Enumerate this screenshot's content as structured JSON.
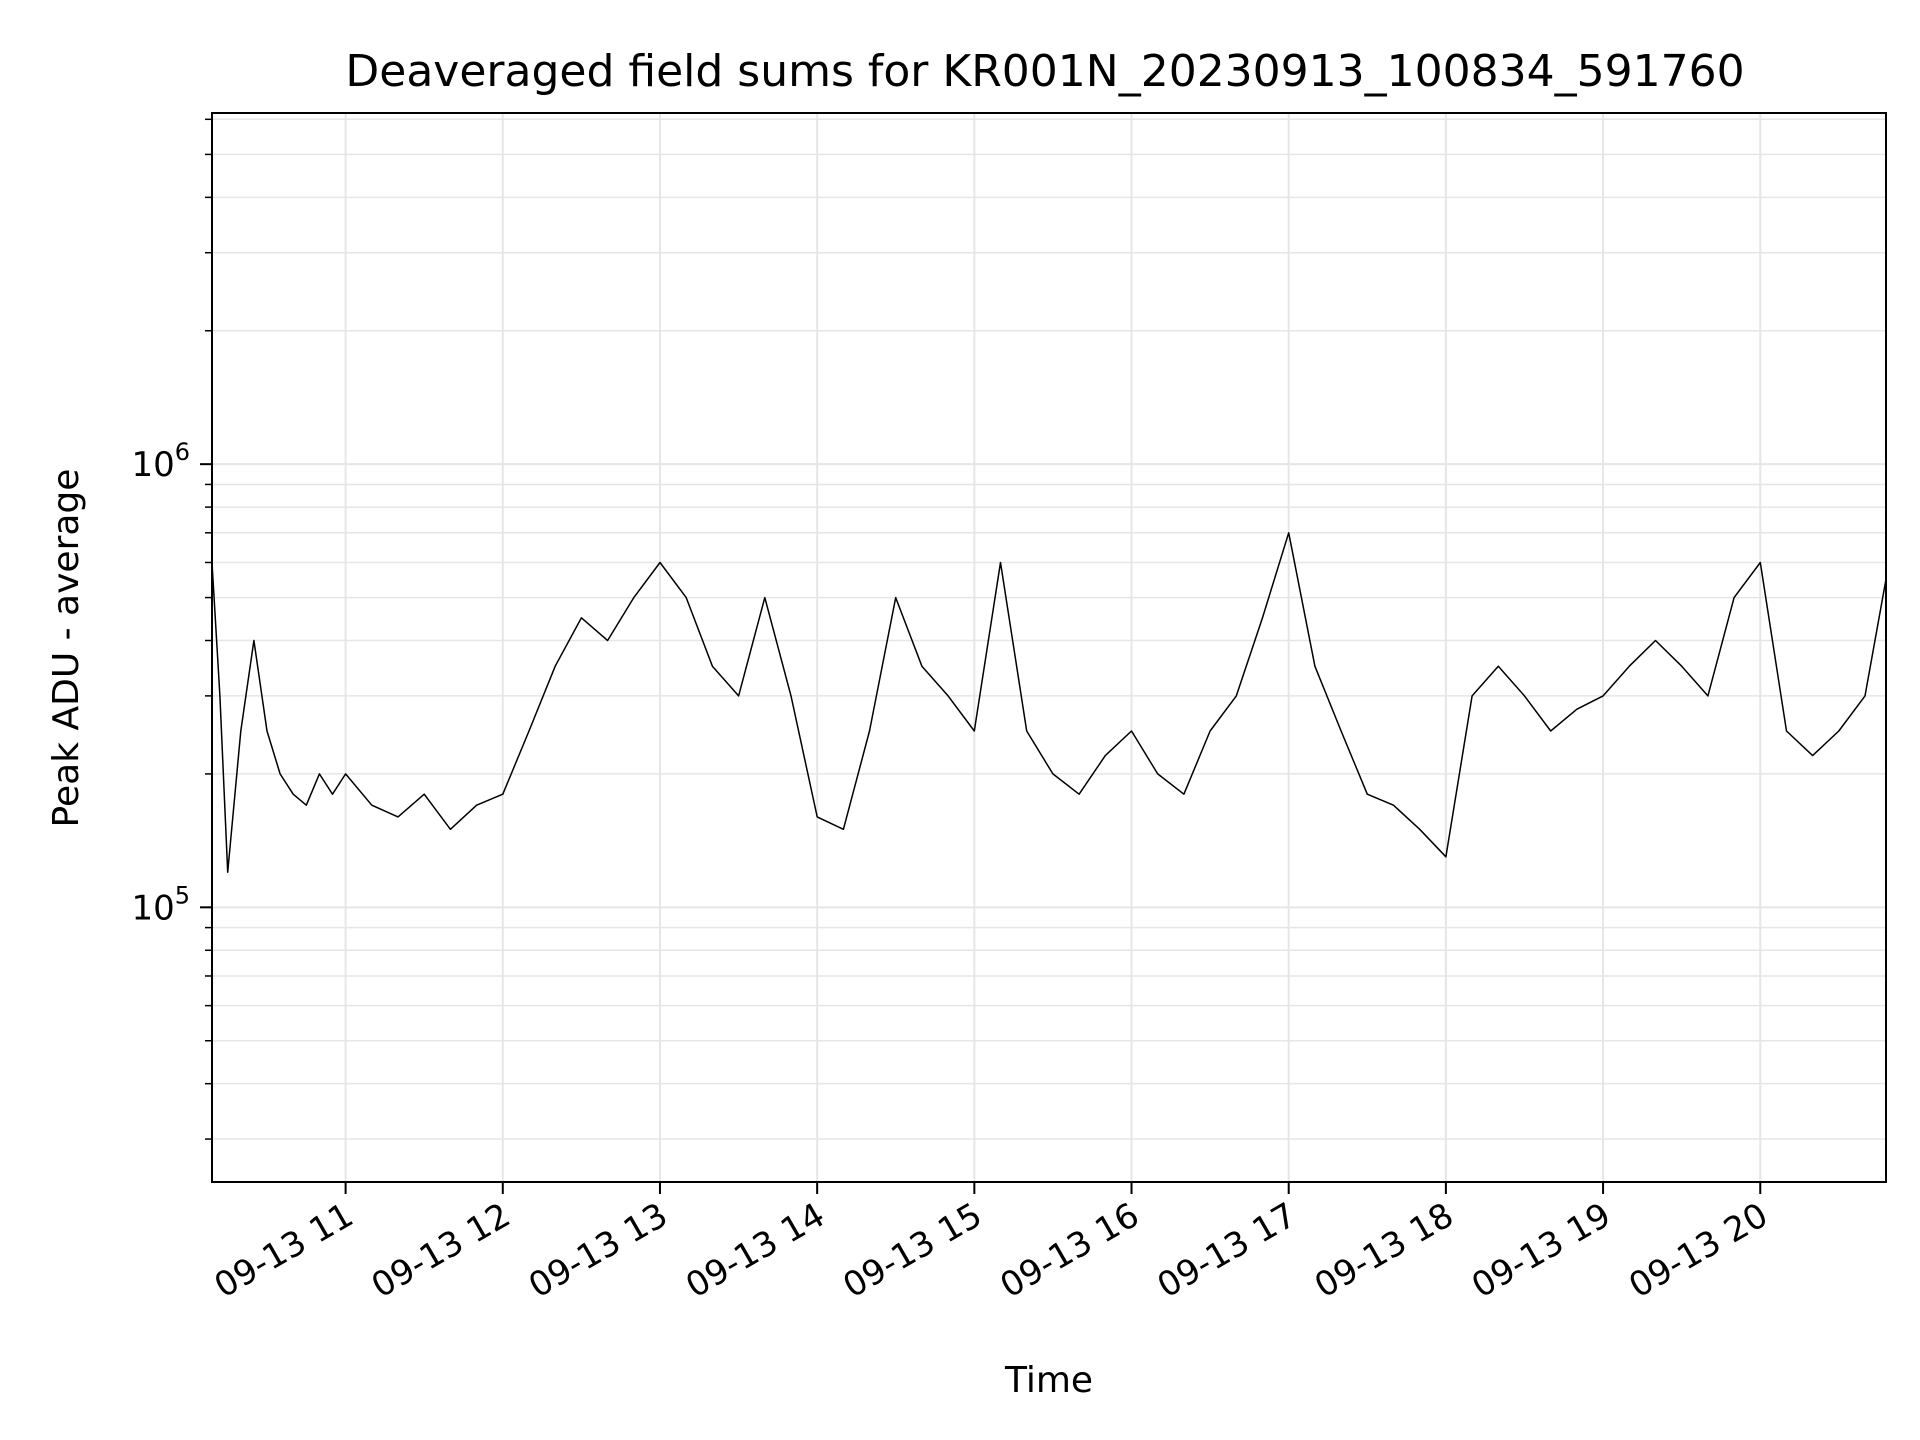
{
  "chart_data": {
    "type": "line",
    "title": "Deaveraged field sums for KR001N_20230913_100834_591760",
    "xlabel": "Time",
    "ylabel": "Peak ADU - average",
    "yscale": "log",
    "ylim": [
      24000,
      6200000
    ],
    "xlim": [
      "09-13 10:09",
      "09-13 20:48"
    ],
    "x_ticks": [
      {
        "label": "09-13 11",
        "value": "09-13 11:00"
      },
      {
        "label": "09-13 12",
        "value": "09-13 12:00"
      },
      {
        "label": "09-13 13",
        "value": "09-13 13:00"
      },
      {
        "label": "09-13 14",
        "value": "09-13 14:00"
      },
      {
        "label": "09-13 15",
        "value": "09-13 15:00"
      },
      {
        "label": "09-13 16",
        "value": "09-13 16:00"
      },
      {
        "label": "09-13 17",
        "value": "09-13 17:00"
      },
      {
        "label": "09-13 18",
        "value": "09-13 18:00"
      },
      {
        "label": "09-13 19",
        "value": "09-13 19:00"
      },
      {
        "label": "09-13 20",
        "value": "09-13 20:00"
      }
    ],
    "y_ticks": [
      {
        "base": "10",
        "exp": "5",
        "value": 100000
      },
      {
        "base": "10",
        "exp": "6",
        "value": 1000000
      }
    ],
    "grid": true,
    "line_color": "#000000",
    "grid_color": "#e6e6e6",
    "series": [
      {
        "x": [
          "09-13 10:09",
          "09-13 10:12",
          "09-13 10:15",
          "09-13 10:20",
          "09-13 10:25",
          "09-13 10:30",
          "09-13 10:35",
          "09-13 10:40",
          "09-13 10:45",
          "09-13 10:50",
          "09-13 10:55",
          "09-13 11:00",
          "09-13 11:10",
          "09-13 11:20",
          "09-13 11:30",
          "09-13 11:40",
          "09-13 11:50",
          "09-13 12:00",
          "09-13 12:10",
          "09-13 12:20",
          "09-13 12:30",
          "09-13 12:40",
          "09-13 12:50",
          "09-13 13:00",
          "09-13 13:10",
          "09-13 13:20",
          "09-13 13:30",
          "09-13 13:40",
          "09-13 13:50",
          "09-13 14:00",
          "09-13 14:10",
          "09-13 14:20",
          "09-13 14:30",
          "09-13 14:40",
          "09-13 14:50",
          "09-13 15:00",
          "09-13 15:10",
          "09-13 15:20",
          "09-13 15:30",
          "09-13 15:40",
          "09-13 15:50",
          "09-13 16:00",
          "09-13 16:10",
          "09-13 16:20",
          "09-13 16:30",
          "09-13 16:40",
          "09-13 16:50",
          "09-13 17:00",
          "09-13 17:10",
          "09-13 17:20",
          "09-13 17:30",
          "09-13 17:40",
          "09-13 17:50",
          "09-13 18:00",
          "09-13 18:10",
          "09-13 18:20",
          "09-13 18:30",
          "09-13 18:40",
          "09-13 18:50",
          "09-13 19:00",
          "09-13 19:10",
          "09-13 19:20",
          "09-13 19:30",
          "09-13 19:40",
          "09-13 19:50",
          "09-13 20:00",
          "09-13 20:10",
          "09-13 20:20",
          "09-13 20:30",
          "09-13 20:40",
          "09-13 20:48"
        ],
        "y": [
          600000,
          300000,
          120000,
          250000,
          400000,
          250000,
          200000,
          180000,
          170000,
          200000,
          180000,
          200000,
          170000,
          160000,
          180000,
          150000,
          170000,
          180000,
          250000,
          350000,
          450000,
          400000,
          500000,
          600000,
          500000,
          350000,
          300000,
          500000,
          300000,
          160000,
          150000,
          250000,
          500000,
          350000,
          300000,
          250000,
          600000,
          250000,
          200000,
          180000,
          220000,
          250000,
          200000,
          180000,
          250000,
          300000,
          450000,
          700000,
          350000,
          250000,
          180000,
          170000,
          150000,
          130000,
          300000,
          350000,
          300000,
          250000,
          280000,
          300000,
          350000,
          400000,
          350000,
          300000,
          500000,
          600000,
          250000,
          220000,
          250000,
          300000,
          550000
        ]
      }
    ]
  }
}
